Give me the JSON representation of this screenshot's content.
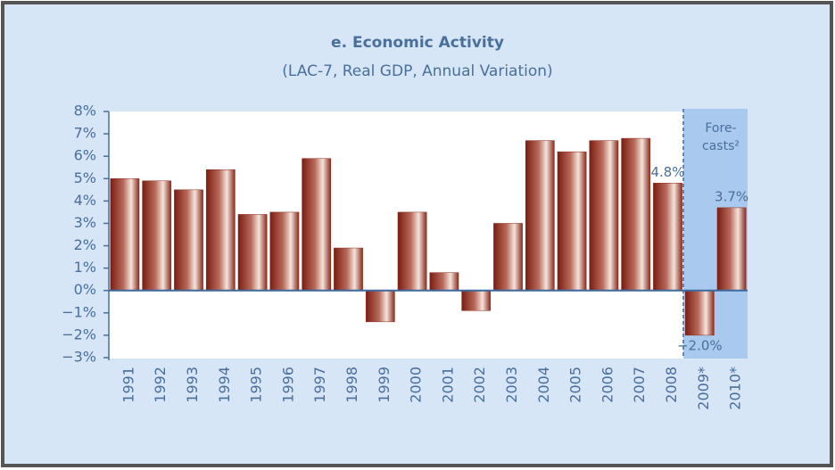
{
  "chart_data": {
    "type": "bar",
    "title": "e. Economic Activity",
    "subtitle": "(LAC-7, Real GDP, Annual Variation)",
    "annotation": [
      "Fore-",
      "casts²"
    ],
    "categories": [
      "1991",
      "1992",
      "1993",
      "1994",
      "1995",
      "1996",
      "1997",
      "1998",
      "1999",
      "2000",
      "2001",
      "2002",
      "2003",
      "2004",
      "2005",
      "2006",
      "2007",
      "2008",
      "2009*",
      "2010*"
    ],
    "values": [
      5.0,
      4.9,
      4.5,
      5.4,
      3.4,
      3.5,
      5.9,
      1.9,
      -1.4,
      3.5,
      0.8,
      -0.9,
      3.0,
      6.7,
      6.2,
      6.7,
      6.8,
      4.8,
      -2.0,
      3.7
    ],
    "value_labels": [
      null,
      null,
      null,
      null,
      null,
      null,
      null,
      null,
      null,
      null,
      null,
      null,
      null,
      null,
      null,
      null,
      null,
      "4.8%",
      "−2.0%",
      "3.7%"
    ],
    "color": "#8b2a1c",
    "ylim": [
      -3,
      8
    ],
    "yticks": [
      {
        "value": -3,
        "label": "−3%"
      },
      {
        "value": -2,
        "label": "−2%"
      },
      {
        "value": -1,
        "label": "−1%"
      },
      {
        "value": 0,
        "label": "0%"
      },
      {
        "value": 1,
        "label": "1%"
      },
      {
        "value": 2,
        "label": "2%"
      },
      {
        "value": 3,
        "label": "3%"
      },
      {
        "value": 4,
        "label": "4%"
      },
      {
        "value": 5,
        "label": "5%"
      },
      {
        "value": 6,
        "label": "6%"
      },
      {
        "value": 7,
        "label": "7%"
      },
      {
        "value": 8,
        "label": "8%"
      }
    ],
    "grid": false
  }
}
